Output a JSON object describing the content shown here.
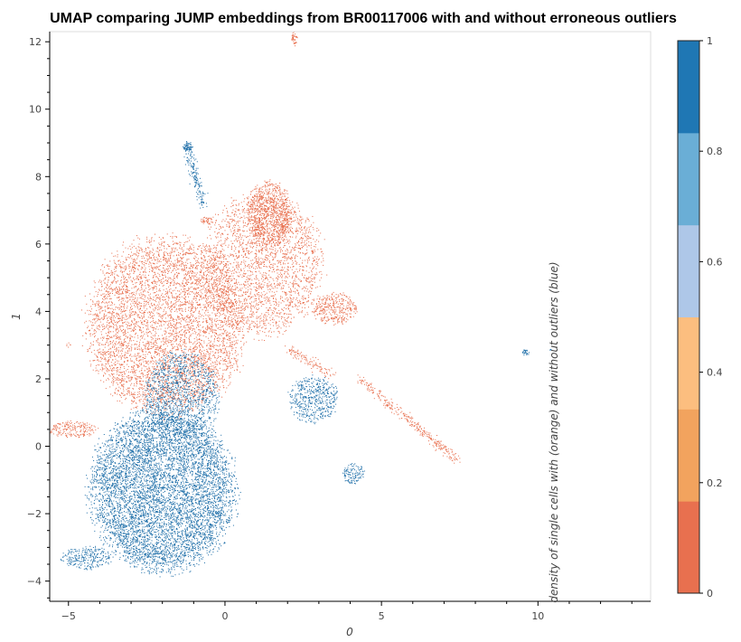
{
  "chart_data": {
    "type": "scatter",
    "title": "UMAP comparing JUMP embeddings from BR00117006 with and without erroneous outliers",
    "xlabel": "0",
    "ylabel": "1",
    "xlim": [
      -5.6,
      13.6
    ],
    "ylim": [
      -4.6,
      12.3
    ],
    "x_ticks": [
      -5,
      0,
      5,
      10
    ],
    "y_ticks": [
      -4,
      -2,
      0,
      2,
      4,
      6,
      8,
      10,
      12
    ],
    "x_tick_labels": [
      "−5",
      "0",
      "5",
      "10"
    ],
    "y_tick_labels": [
      "−4",
      "−2",
      "0",
      "2",
      "4",
      "6",
      "8",
      "10",
      "12"
    ],
    "grid": false,
    "legend": "none",
    "series": [
      {
        "color": "#e8704f",
        "clusters": [
          {
            "cx": -1.9,
            "cy": 3.6,
            "rx": 2.5,
            "ry": 2.6,
            "n": 5200
          },
          {
            "cx": 1.2,
            "cy": 5.4,
            "rx": 1.9,
            "ry": 2.1,
            "n": 2400
          },
          {
            "cx": 1.4,
            "cy": 6.9,
            "rx": 0.7,
            "ry": 1.0,
            "n": 900
          },
          {
            "cx": 3.5,
            "cy": 4.1,
            "rx": 0.7,
            "ry": 0.5,
            "n": 350
          },
          {
            "cx": 2.2,
            "cy": 12.1,
            "rx": 0.1,
            "ry": 0.2,
            "n": 40
          },
          {
            "cx": -4.9,
            "cy": 0.5,
            "rx": 0.8,
            "ry": 0.25,
            "n": 200
          },
          {
            "cx": -5.0,
            "cy": 3.0,
            "rx": 0.08,
            "ry": 0.08,
            "n": 6
          },
          {
            "cx": -0.6,
            "cy": 6.7,
            "rx": 0.2,
            "ry": 0.12,
            "n": 40
          }
        ],
        "strands": [
          {
            "x0": 4.3,
            "y0": 2.0,
            "x1": 7.4,
            "y1": -0.4,
            "n": 320
          },
          {
            "x0": 2.0,
            "y0": 2.9,
            "x1": 3.4,
            "y1": 2.1,
            "n": 120
          }
        ]
      },
      {
        "color": "#1f6fa9",
        "clusters": [
          {
            "cx": -2.0,
            "cy": -1.3,
            "rx": 2.3,
            "ry": 2.4,
            "n": 6800
          },
          {
            "cx": -1.4,
            "cy": 1.5,
            "rx": 1.2,
            "ry": 1.3,
            "n": 1200
          },
          {
            "cx": 2.8,
            "cy": 1.4,
            "rx": 0.8,
            "ry": 0.7,
            "n": 500
          },
          {
            "cx": 4.1,
            "cy": -0.8,
            "rx": 0.35,
            "ry": 0.3,
            "n": 120
          },
          {
            "cx": 9.6,
            "cy": 2.8,
            "rx": 0.12,
            "ry": 0.1,
            "n": 30
          },
          {
            "cx": 10.4,
            "cy": 2.9,
            "rx": 0.04,
            "ry": 0.04,
            "n": 4
          },
          {
            "cx": -4.4,
            "cy": -3.3,
            "rx": 0.8,
            "ry": 0.35,
            "n": 260
          },
          {
            "cx": -1.2,
            "cy": 8.9,
            "rx": 0.15,
            "ry": 0.12,
            "n": 60
          }
        ],
        "strands": [
          {
            "x0": -1.2,
            "y0": 8.9,
            "x1": -0.7,
            "y1": 7.1,
            "n": 180
          }
        ]
      }
    ],
    "colorbar": {
      "label": "density of single cells with (orange) and without outliers (blue)",
      "ticks": [
        "0",
        "0.2",
        "0.4",
        "0.6",
        "0.8",
        "1"
      ],
      "bands": [
        "#e8704f",
        "#f2a35e",
        "#fcbe7f",
        "#aec7e8",
        "#6aaed6",
        "#1f77b4"
      ]
    }
  }
}
